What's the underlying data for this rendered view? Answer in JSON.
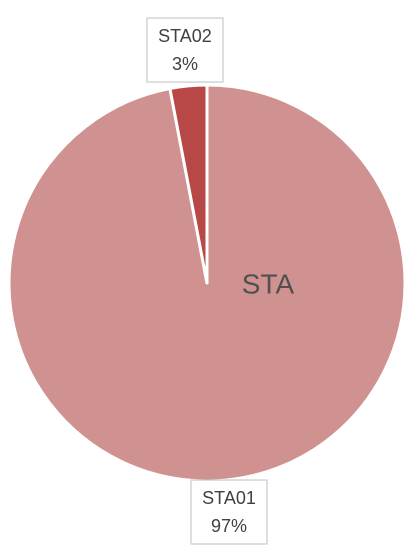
{
  "chart_data": {
    "type": "pie",
    "title": "STA",
    "categories": [
      "STA01",
      "STA02"
    ],
    "values": [
      97,
      3
    ],
    "value_labels": [
      "97%",
      "3%"
    ],
    "colors": [
      "#d09291",
      "#b84848"
    ]
  }
}
